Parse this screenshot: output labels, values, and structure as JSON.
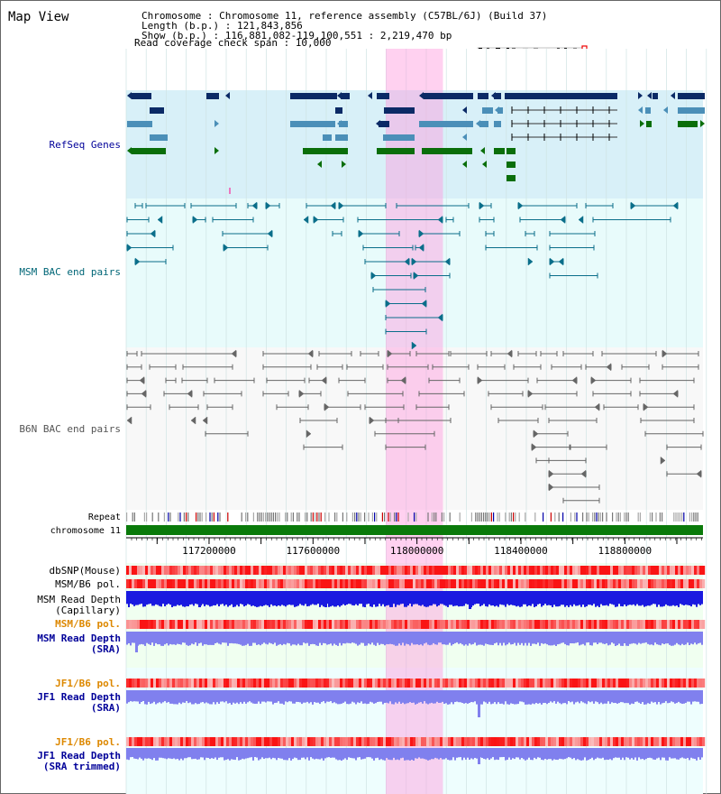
{
  "header": {
    "view_title": "Map View",
    "info_lines": [
      "Chromosome      : Chromosome 11, reference assembly (C57BL/6J) (Build 37)",
      "Length (b.p.) : 121,843,856",
      "  Show (b.p.) : 116,881,082-119,100,551 : 2,219,470 bp",
      "Read coverage check span : 10,000"
    ]
  },
  "tracks": {
    "refseq": {
      "label": "RefSeq Genes",
      "color": "#000099"
    },
    "msm_bac": {
      "label": "MSM BAC end pairs",
      "color": "#006677"
    },
    "b6n_bac": {
      "label": "B6N BAC end pairs",
      "color": "#555555"
    },
    "repeat": {
      "label": "Repeat"
    },
    "chromosome": {
      "label": "chromosome 11"
    },
    "dbsnp": {
      "label": "dbSNP(Mouse)"
    },
    "msm_b6_pol_cap": {
      "label": "MSM/B6 pol."
    },
    "msm_read_depth_cap": {
      "line1": "MSM Read Depth",
      "line2": "(Capillary)"
    },
    "msm_b6_pol_sra": {
      "label": "MSM/B6 pol.",
      "color": "#dd8800"
    },
    "msm_read_depth_sra": {
      "line1": "MSM Read Depth",
      "line2": "(SRA)",
      "color": "#000099"
    },
    "jf1_b6_pol_sra": {
      "label": "JF1/B6 pol.",
      "color": "#dd8800"
    },
    "jf1_read_depth_sra": {
      "line1": "JF1 Read Depth",
      "line2": "(SRA)",
      "color": "#000099"
    },
    "jf1_b6_pol_trim": {
      "label": "JF1/B6 pol.",
      "color": "#dd8800"
    },
    "jf1_read_depth_trim": {
      "line1": "JF1 Read Depth",
      "line2": "(SRA trimmed)",
      "color": "#000099"
    }
  },
  "axis": {
    "start_bp": 116881082,
    "end_bp": 119100551,
    "tick_labels": [
      "117200000",
      "117600000",
      "118000000",
      "118400000",
      "118800000"
    ]
  },
  "highlight": {
    "start_bp": 117880000,
    "end_bp": 118100000,
    "color": "#ff99dd"
  },
  "colors": {
    "refseq_dark": "#0b2a66",
    "refseq_mid": "#4b8fb8",
    "refseq_green": "#0a6e0a",
    "refseq_bg": "#d8f0f8",
    "bac_bg": "#e8fbfb",
    "chromosome_bar": "#0a7a0a",
    "depth_cap": "#1a1ae0",
    "depth_sra": "#8080ee"
  }
}
